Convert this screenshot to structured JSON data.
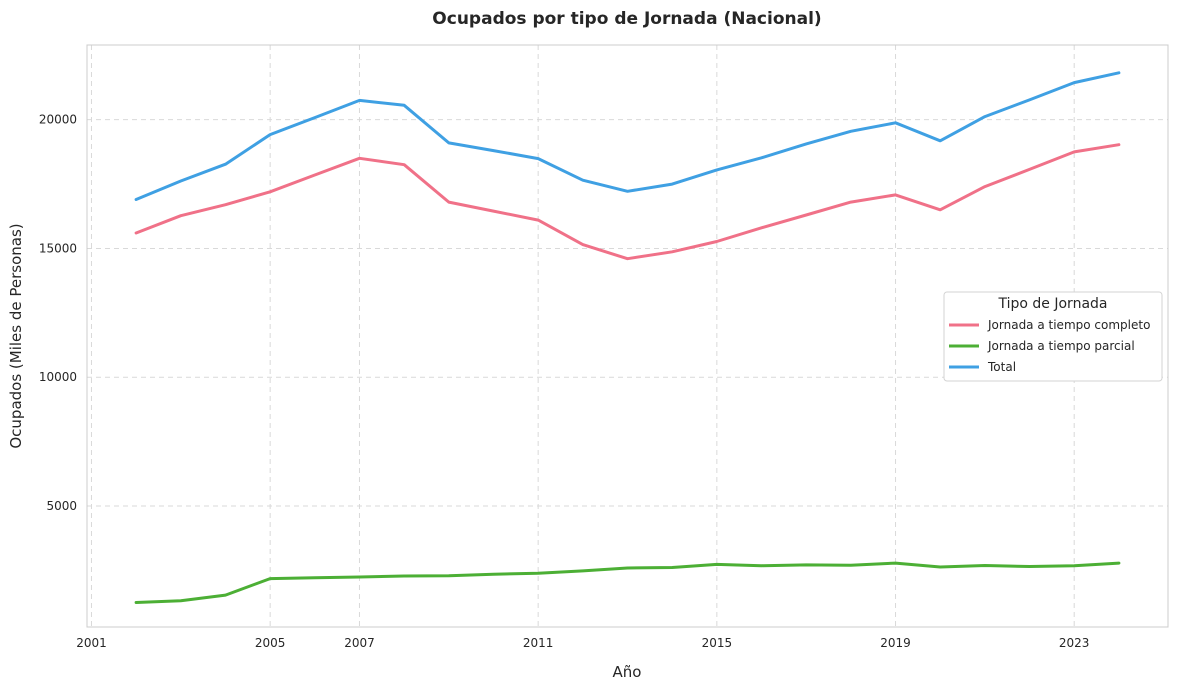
{
  "chart_data": {
    "type": "line",
    "title": "Ocupados por tipo de Jornada (Nacional)",
    "xlabel": "Año",
    "ylabel": "Ocupados (Miles de Personas)",
    "x": [
      2002,
      2003,
      2004,
      2005,
      2006,
      2007,
      2008,
      2009,
      2010,
      2011,
      2012,
      2013,
      2014,
      2015,
      2016,
      2017,
      2018,
      2019,
      2020,
      2021,
      2022,
      2023,
      2024
    ],
    "series": [
      {
        "name": "Jornada a tiempo completo",
        "color": "#f07188",
        "values": [
          15600,
          16270,
          16700,
          17200,
          17850,
          18500,
          18250,
          16800,
          16450,
          16100,
          15150,
          14600,
          14870,
          15270,
          15800,
          16300,
          16800,
          17080,
          16500,
          17400,
          18070,
          18750,
          19030
        ]
      },
      {
        "name": "Jornada a tiempo parcial",
        "color": "#4caf35",
        "values": [
          1250,
          1320,
          1540,
          2180,
          2210,
          2240,
          2280,
          2290,
          2350,
          2390,
          2480,
          2590,
          2610,
          2730,
          2680,
          2710,
          2700,
          2780,
          2630,
          2690,
          2650,
          2680,
          2780
        ]
      },
      {
        "name": "Total",
        "color": "#3fa0e3",
        "values": [
          16900,
          17620,
          18270,
          19420,
          20080,
          20750,
          20560,
          19100,
          18800,
          18490,
          17650,
          17220,
          17500,
          18050,
          18520,
          19060,
          19550,
          19880,
          19180,
          20120,
          20770,
          21440,
          21820
        ]
      }
    ],
    "xticks": [
      2001,
      2005,
      2007,
      2011,
      2015,
      2019,
      2023
    ],
    "yticks": [
      5000,
      10000,
      15000,
      20000
    ],
    "xlim": [
      2000.9,
      2025.1
    ],
    "ylim": [
      300,
      22900
    ],
    "grid": true,
    "legend": {
      "title": "Tipo de Jornada",
      "placement": "center-right"
    }
  }
}
